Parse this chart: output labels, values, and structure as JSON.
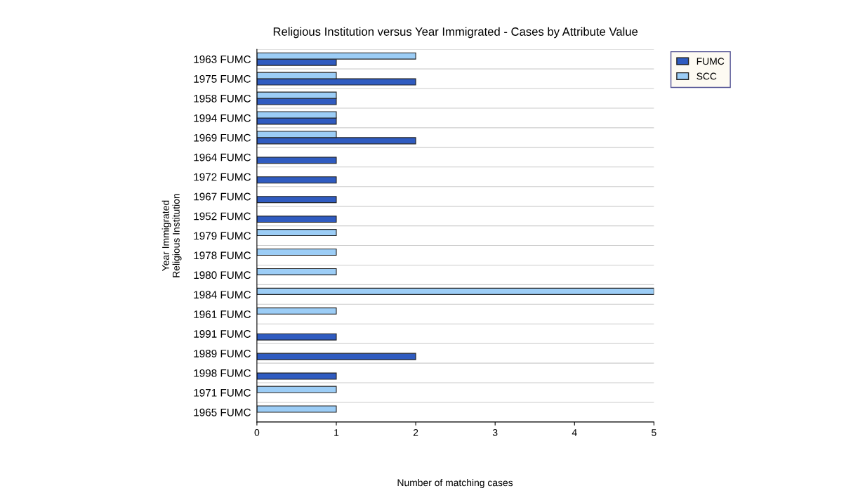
{
  "chart_data": {
    "type": "bar",
    "orientation": "horizontal",
    "title": "Religious Institution versus Year Immigrated - Cases by Attribute Value",
    "xlabel": "Number of matching cases",
    "ylabel": "Year Immigrated\nReligious Institution",
    "categories": [
      "1963 FUMC",
      "1975 FUMC",
      "1958 FUMC",
      "1994 FUMC",
      "1969 FUMC",
      "1964 FUMC",
      "1972 FUMC",
      "1967 FUMC",
      "1952 FUMC",
      "1979 FUMC",
      "1978 FUMC",
      "1980 FUMC",
      "1984 FUMC",
      "1961 FUMC",
      "1991 FUMC",
      "1989 FUMC",
      "1998 FUMC",
      "1971 FUMC",
      "1965 FUMC"
    ],
    "series": [
      {
        "name": "FUMC",
        "color": "#2f5bc0",
        "values": [
          1,
          2,
          1,
          1,
          2,
          1,
          1,
          1,
          1,
          null,
          null,
          null,
          null,
          null,
          1,
          2,
          1,
          null,
          null
        ]
      },
      {
        "name": "SCC",
        "color": "#9ccdf6",
        "values": [
          2,
          1,
          1,
          1,
          1,
          null,
          null,
          null,
          null,
          1,
          1,
          1,
          5,
          1,
          null,
          null,
          null,
          1,
          1
        ]
      }
    ],
    "xlim": [
      0,
      5
    ],
    "xticks": [
      0,
      1,
      2,
      3,
      4,
      5
    ],
    "grid": "y",
    "legend": "right"
  }
}
